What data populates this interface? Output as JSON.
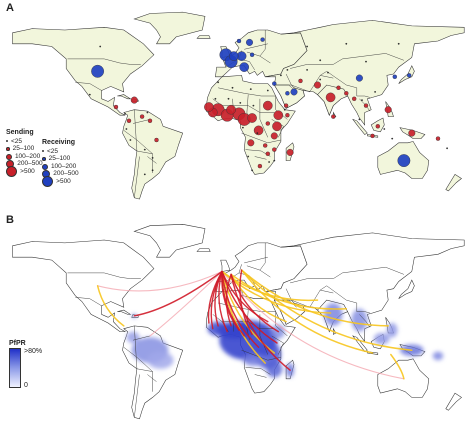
{
  "panel_a": {
    "label": "A",
    "legend": {
      "sending_title": "Sending",
      "sending_color": "#c8202a",
      "receiving_title": "Receiving",
      "receiving_color": "#2040c0",
      "sending_items": [
        "<25",
        "25–100",
        "100–200",
        "200–500",
        ">500"
      ],
      "receiving_items": [
        "<25",
        "25–100",
        "100–200",
        "200–500",
        ">500"
      ]
    },
    "land_color": "#f2f6dc",
    "border_color": "#333333",
    "bubbles": [
      {
        "lon": -100,
        "lat": 40,
        "type": "receiving",
        "cls": 4
      },
      {
        "lon": -2,
        "lat": 52,
        "type": "receiving",
        "cls": 4
      },
      {
        "lon": 2,
        "lat": 47,
        "type": "receiving",
        "cls": 4
      },
      {
        "lon": 10,
        "lat": 51,
        "type": "receiving",
        "cls": 3
      },
      {
        "lon": 4,
        "lat": 51,
        "type": "receiving",
        "cls": 3
      },
      {
        "lon": 12,
        "lat": 43,
        "type": "receiving",
        "cls": 3
      },
      {
        "lon": 16,
        "lat": 61,
        "type": "receiving",
        "cls": 2
      },
      {
        "lon": 8,
        "lat": 62,
        "type": "receiving",
        "cls": 1
      },
      {
        "lon": 26,
        "lat": 63,
        "type": "receiving",
        "cls": 1
      },
      {
        "lon": 18,
        "lat": 52,
        "type": "receiving",
        "cls": 1
      },
      {
        "lon": 134,
        "lat": -25,
        "type": "receiving",
        "cls": 4
      },
      {
        "lon": 50,
        "lat": 25,
        "type": "receiving",
        "cls": 2
      },
      {
        "lon": 100,
        "lat": 35,
        "type": "receiving",
        "cls": 2
      },
      {
        "lon": 138,
        "lat": 37,
        "type": "receiving",
        "cls": 1
      },
      {
        "lon": 127,
        "lat": 36,
        "type": "receiving",
        "cls": 1
      },
      {
        "lon": 35,
        "lat": 31,
        "type": "receiving",
        "cls": 1
      },
      {
        "lon": 45,
        "lat": 24,
        "type": "receiving",
        "cls": 1
      },
      {
        "lon": -8,
        "lat": 12,
        "type": "sending",
        "cls": 4
      },
      {
        "lon": -1,
        "lat": 8,
        "type": "sending",
        "cls": 4
      },
      {
        "lon": 8,
        "lat": 9,
        "type": "sending",
        "cls": 4
      },
      {
        "lon": 12,
        "lat": 5,
        "type": "sending",
        "cls": 4
      },
      {
        "lon": -12,
        "lat": 10,
        "type": "sending",
        "cls": 3
      },
      {
        "lon": -15,
        "lat": 14,
        "type": "sending",
        "cls": 3
      },
      {
        "lon": 2,
        "lat": 12,
        "type": "sending",
        "cls": 3
      },
      {
        "lon": 18,
        "lat": 6,
        "type": "sending",
        "cls": 3
      },
      {
        "lon": 23,
        "lat": -3,
        "type": "sending",
        "cls": 3
      },
      {
        "lon": 38,
        "lat": 8,
        "type": "sending",
        "cls": 3
      },
      {
        "lon": 30,
        "lat": 15,
        "type": "sending",
        "cls": 3
      },
      {
        "lon": 37,
        "lat": 0,
        "type": "sending",
        "cls": 3
      },
      {
        "lon": 78,
        "lat": 21,
        "type": "sending",
        "cls": 3
      },
      {
        "lon": 35,
        "lat": -7,
        "type": "sending",
        "cls": 2
      },
      {
        "lon": 17,
        "lat": -12,
        "type": "sending",
        "cls": 2
      },
      {
        "lon": 47,
        "lat": -19,
        "type": "sending",
        "cls": 2
      },
      {
        "lon": -72,
        "lat": 19,
        "type": "sending",
        "cls": 2
      },
      {
        "lon": 68,
        "lat": 30,
        "type": "sending",
        "cls": 2
      },
      {
        "lon": 122,
        "lat": 12,
        "type": "sending",
        "cls": 2
      },
      {
        "lon": 140,
        "lat": -5,
        "type": "sending",
        "cls": 2
      },
      {
        "lon": 105,
        "lat": 15,
        "type": "sending",
        "cls": 1
      },
      {
        "lon": 114,
        "lat": 0,
        "type": "sending",
        "cls": 1
      },
      {
        "lon": 110,
        "lat": -7,
        "type": "sending",
        "cls": 1
      },
      {
        "lon": -86,
        "lat": 14,
        "type": "sending",
        "cls": 1
      },
      {
        "lon": -76,
        "lat": 4,
        "type": "sending",
        "cls": 1
      },
      {
        "lon": -66,
        "lat": 7,
        "type": "sending",
        "cls": 1
      },
      {
        "lon": -55,
        "lat": -10,
        "type": "sending",
        "cls": 1
      },
      {
        "lon": -60,
        "lat": 4,
        "type": "sending",
        "cls": 1
      },
      {
        "lon": 28,
        "lat": -14,
        "type": "sending",
        "cls": 1
      },
      {
        "lon": 30,
        "lat": -20,
        "type": "sending",
        "cls": 1
      },
      {
        "lon": 24,
        "lat": -29,
        "type": "sending",
        "cls": 1
      },
      {
        "lon": 35,
        "lat": -17,
        "type": "sending",
        "cls": 1
      },
      {
        "lon": 45,
        "lat": 8,
        "type": "sending",
        "cls": 1
      },
      {
        "lon": 44,
        "lat": 15,
        "type": "sending",
        "cls": 1
      },
      {
        "lon": 30,
        "lat": 2,
        "type": "sending",
        "cls": 1
      },
      {
        "lon": 55,
        "lat": 33,
        "type": "sending",
        "cls": 1
      },
      {
        "lon": 84,
        "lat": 28,
        "type": "sending",
        "cls": 1
      },
      {
        "lon": 90,
        "lat": 24,
        "type": "sending",
        "cls": 1
      },
      {
        "lon": 96,
        "lat": 20,
        "type": "sending",
        "cls": 1
      },
      {
        "lon": 160,
        "lat": -9,
        "type": "sending",
        "cls": 1
      },
      {
        "lon": 80,
        "lat": 7,
        "type": "sending",
        "cls": 1
      },
      {
        "lon": 45,
        "lat": 41,
        "type": "sending",
        "cls": 0
      },
      {
        "lon": 60,
        "lat": 41,
        "type": "sending",
        "cls": 0
      },
      {
        "lon": 70,
        "lat": 48,
        "type": "sending",
        "cls": 0
      },
      {
        "lon": 105,
        "lat": 47,
        "type": "sending",
        "cls": 0
      },
      {
        "lon": 90,
        "lat": 60,
        "type": "sending",
        "cls": 0
      },
      {
        "lon": -106,
        "lat": 23,
        "type": "sending",
        "cls": 0
      },
      {
        "lon": -79,
        "lat": 9,
        "type": "sending",
        "cls": 0
      },
      {
        "lon": -62,
        "lat": 10,
        "type": "sending",
        "cls": 0
      },
      {
        "lon": -78,
        "lat": -2,
        "type": "sending",
        "cls": 0
      },
      {
        "lon": -75,
        "lat": -10,
        "type": "sending",
        "cls": 0
      },
      {
        "lon": -64,
        "lat": -17,
        "type": "sending",
        "cls": 0
      },
      {
        "lon": -58,
        "lat": -23,
        "type": "sending",
        "cls": 0
      },
      {
        "lon": -64,
        "lat": -35,
        "type": "sending",
        "cls": 0
      },
      {
        "lon": -8,
        "lat": 32,
        "type": "sending",
        "cls": 0
      },
      {
        "lon": 3,
        "lat": 28,
        "type": "sending",
        "cls": 0
      },
      {
        "lon": 17,
        "lat": 27,
        "type": "sending",
        "cls": 0
      },
      {
        "lon": 30,
        "lat": 26,
        "type": "sending",
        "cls": 0
      },
      {
        "lon": -10,
        "lat": 20,
        "type": "sending",
        "cls": 0
      },
      {
        "lon": 9,
        "lat": 17,
        "type": "sending",
        "cls": 0
      },
      {
        "lon": 19,
        "lat": 15,
        "type": "sending",
        "cls": 0
      },
      {
        "lon": 15,
        "lat": -22,
        "type": "sending",
        "cls": 0
      },
      {
        "lon": 18,
        "lat": -32,
        "type": "sending",
        "cls": 0
      },
      {
        "lon": 35,
        "lat": -25,
        "type": "sending",
        "cls": 0
      },
      {
        "lon": 31,
        "lat": -26,
        "type": "sending",
        "cls": 0
      },
      {
        "lon": 11,
        "lat": -1,
        "type": "sending",
        "cls": 0
      },
      {
        "lon": 22,
        "lat": -5,
        "type": "sending",
        "cls": 0
      },
      {
        "lon": 43,
        "lat": 12,
        "type": "sending",
        "cls": 0
      },
      {
        "lon": 100,
        "lat": 5,
        "type": "sending",
        "cls": 0
      },
      {
        "lon": 119,
        "lat": -2,
        "type": "sending",
        "cls": 0
      },
      {
        "lon": 125,
        "lat": -9,
        "type": "sending",
        "cls": 0
      },
      {
        "lon": 167,
        "lat": -16,
        "type": "sending",
        "cls": 0
      },
      {
        "lon": 102,
        "lat": 19,
        "type": "sending",
        "cls": 0
      },
      {
        "lon": 76,
        "lat": 39,
        "type": "sending",
        "cls": 0
      },
      {
        "lon": 40,
        "lat": 37,
        "type": "sending",
        "cls": 0
      },
      {
        "lon": 70,
        "lat": 34,
        "type": "sending",
        "cls": 0
      },
      {
        "lon": 112,
        "lat": 25,
        "type": "sending",
        "cls": 0
      },
      {
        "lon": 130,
        "lat": 60,
        "type": "sending",
        "cls": 0
      },
      {
        "lon": 60,
        "lat": 58,
        "type": "sending",
        "cls": 0
      },
      {
        "lon": -98,
        "lat": 58,
        "type": "sending",
        "cls": 0
      },
      {
        "lon": -58,
        "lat": -32,
        "type": "sending",
        "cls": 0
      },
      {
        "lon": 0,
        "lat": 20,
        "type": "sending",
        "cls": 0
      }
    ]
  },
  "panel_b": {
    "label": "B",
    "legend": {
      "title": "PfPR",
      "max_label": ">80%",
      "min_label": "0",
      "ramp_high": "#2030c8",
      "ramp_low": "#f0f2ff"
    },
    "land_color": "#ffffff",
    "flow_high_color": "#d01a28",
    "flow_low_color": "#f4a8b0",
    "flow_other_color": "#f7c51e",
    "flows": [
      {
        "from": [
          -5,
          50
        ],
        "to": [
          -100,
          40
        ],
        "color": "low"
      },
      {
        "from": [
          -5,
          50
        ],
        "to": [
          134,
          -25
        ],
        "color": "low"
      },
      {
        "from": [
          -5,
          50
        ],
        "to": [
          -60,
          5
        ],
        "color": "low"
      },
      {
        "from": [
          -5,
          50
        ],
        "to": [
          -72,
          19
        ],
        "color": "high"
      },
      {
        "from": [
          -5,
          50
        ],
        "to": [
          -8,
          12
        ],
        "color": "high"
      },
      {
        "from": [
          -5,
          50
        ],
        "to": [
          -1,
          8
        ],
        "color": "high"
      },
      {
        "from": [
          -5,
          50
        ],
        "to": [
          8,
          9
        ],
        "color": "high"
      },
      {
        "from": [
          -5,
          50
        ],
        "to": [
          12,
          5
        ],
        "color": "high"
      },
      {
        "from": [
          -5,
          50
        ],
        "to": [
          -15,
          14
        ],
        "color": "high"
      },
      {
        "from": [
          -5,
          50
        ],
        "to": [
          23,
          -3
        ],
        "color": "high"
      },
      {
        "from": [
          -5,
          50
        ],
        "to": [
          37,
          0
        ],
        "color": "high"
      },
      {
        "from": [
          -5,
          50
        ],
        "to": [
          30,
          15
        ],
        "color": "high"
      },
      {
        "from": [
          -5,
          50
        ],
        "to": [
          -12,
          10
        ],
        "color": "high"
      },
      {
        "from": [
          2,
          48
        ],
        "to": [
          47,
          -19
        ],
        "color": "high"
      },
      {
        "from": [
          2,
          48
        ],
        "to": [
          38,
          8
        ],
        "color": "high"
      },
      {
        "from": [
          2,
          48
        ],
        "to": [
          2,
          12
        ],
        "color": "high"
      },
      {
        "from": [
          10,
          51
        ],
        "to": [
          18,
          6
        ],
        "color": "high"
      },
      {
        "from": [
          -5,
          50
        ],
        "to": [
          78,
          21
        ],
        "color": "other"
      },
      {
        "from": [
          -5,
          50
        ],
        "to": [
          68,
          30
        ],
        "color": "other"
      },
      {
        "from": [
          2,
          48
        ],
        "to": [
          90,
          24
        ],
        "color": "other"
      },
      {
        "from": [
          10,
          51
        ],
        "to": [
          122,
          12
        ],
        "color": "other"
      },
      {
        "from": [
          10,
          51
        ],
        "to": [
          140,
          -5
        ],
        "color": "other"
      },
      {
        "from": [
          10,
          51
        ],
        "to": [
          110,
          -7
        ],
        "color": "other"
      },
      {
        "from": [
          134,
          -25
        ],
        "to": [
          124,
          -8
        ],
        "color": "other"
      },
      {
        "from": [
          -100,
          40
        ],
        "to": [
          -80,
          12
        ],
        "color": "other"
      },
      {
        "from": [
          2,
          48
        ],
        "to": [
          44,
          15
        ],
        "color": "other"
      },
      {
        "from": [
          -5,
          50
        ],
        "to": [
          35,
          -7
        ],
        "color": "other"
      },
      {
        "from": [
          -5,
          50
        ],
        "to": [
          28,
          -14
        ],
        "color": "other"
      }
    ],
    "risk_zones": [
      {
        "lon": 15,
        "lat": 2,
        "rx": 22,
        "ry": 14,
        "level": 0.95
      },
      {
        "lon": 5,
        "lat": 9,
        "rx": 14,
        "ry": 6,
        "level": 0.9
      },
      {
        "lon": -8,
        "lat": 10,
        "rx": 8,
        "ry": 5,
        "level": 0.85
      },
      {
        "lon": 30,
        "lat": -8,
        "rx": 10,
        "ry": 10,
        "level": 0.8
      },
      {
        "lon": 35,
        "lat": -18,
        "rx": 6,
        "ry": 6,
        "level": 0.7
      },
      {
        "lon": 47,
        "lat": -19,
        "rx": 3,
        "ry": 5,
        "level": 0.6
      },
      {
        "lon": 20,
        "lat": -12,
        "rx": 9,
        "ry": 4,
        "level": 0.55
      },
      {
        "lon": -60,
        "lat": -5,
        "rx": 14,
        "ry": 9,
        "level": 0.45
      },
      {
        "lon": -52,
        "lat": -12,
        "rx": 10,
        "ry": 6,
        "level": 0.3
      },
      {
        "lon": -73,
        "lat": 4,
        "rx": 5,
        "ry": 4,
        "level": 0.35
      },
      {
        "lon": 80,
        "lat": 20,
        "rx": 7,
        "ry": 8,
        "level": 0.5
      },
      {
        "lon": 100,
        "lat": 16,
        "rx": 6,
        "ry": 8,
        "level": 0.45
      },
      {
        "lon": 140,
        "lat": -5,
        "rx": 9,
        "ry": 4,
        "level": 0.6
      },
      {
        "lon": 117,
        "lat": 3,
        "rx": 6,
        "ry": 4,
        "level": 0.4
      },
      {
        "lon": 125,
        "lat": 9,
        "rx": 4,
        "ry": 5,
        "level": 0.4
      },
      {
        "lon": 160,
        "lat": -9,
        "rx": 4,
        "ry": 3,
        "level": 0.5
      },
      {
        "lon": 38,
        "lat": 8,
        "rx": 5,
        "ry": 5,
        "level": 0.45
      },
      {
        "lon": -72,
        "lat": 19,
        "rx": 2,
        "ry": 1.5,
        "level": 0.5
      }
    ]
  }
}
